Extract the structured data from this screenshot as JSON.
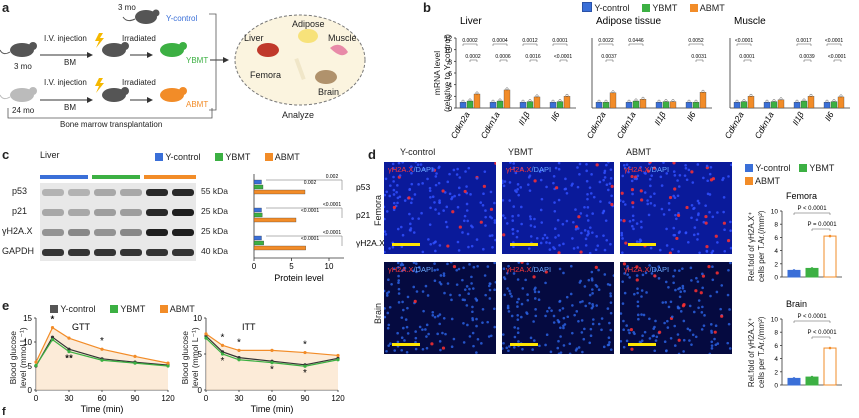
{
  "panel_labels": {
    "a": "a",
    "b": "b",
    "c": "c",
    "d": "d",
    "e": "e",
    "f": "f"
  },
  "colors": {
    "y_control": "#3a6fd8",
    "ybmt": "#3cb043",
    "abmt": "#f28c28",
    "black": "#333333"
  },
  "panel_a": {
    "age_young_top": "3 mo",
    "y_control": "Y-control",
    "iv_injection": "I.V. injection",
    "irradiated": "Irradiated",
    "age_young": "3 mo",
    "bm": "BM",
    "ybmt": "YBMT",
    "age_old": "24 mo",
    "abmt": "ABMT",
    "bracket_label": "Bone marrow transplantation",
    "organs": [
      "Liver",
      "Adipose",
      "Muscle",
      "Femora",
      "Brain"
    ],
    "analyze": "Analyze"
  },
  "legend": {
    "y_control": "Y-control",
    "ybmt": "YBMT",
    "abmt": "ABMT"
  },
  "panel_b": {
    "ylabel_1": "mRNA level",
    "ylabel_2": "(relative to Y-control)",
    "yticks": [
      "0",
      "2",
      "4",
      "6",
      "8",
      "10",
      "12"
    ],
    "genes": [
      "Cdkn2a",
      "Cdkn1a",
      "Il1β",
      "Il6"
    ],
    "chart_data": [
      {
        "type": "bar",
        "title": "Liver",
        "categories": [
          "Cdkn2a",
          "Cdkn1a",
          "Il1β",
          "Il6"
        ],
        "ylim": [
          0,
          12
        ],
        "series": [
          {
            "name": "Y-control",
            "values": [
              1,
              1,
              1,
              1
            ]
          },
          {
            "name": "YBMT",
            "values": [
              1.2,
              1.2,
              1.1,
              1.1
            ]
          },
          {
            "name": "ABMT",
            "values": [
              2.4,
              3.1,
              1.9,
              2.0
            ]
          }
        ],
        "pvalues": [
          [
            "0.0002",
            "0.0002"
          ],
          [
            "0.0004",
            "0.0006"
          ],
          [
            "0.0012",
            "0.0016"
          ],
          [
            "0.0001",
            "<0.0001"
          ]
        ]
      },
      {
        "type": "bar",
        "title": "Adipose tissue",
        "categories": [
          "Cdkn2a",
          "Cdkn1a",
          "Il1β",
          "Il6"
        ],
        "ylim": [
          0,
          12
        ],
        "series": [
          {
            "name": "Y-control",
            "values": [
              1,
              1,
              1,
              1
            ]
          },
          {
            "name": "YBMT",
            "values": [
              1.0,
              1.2,
              1.1,
              1.0
            ]
          },
          {
            "name": "ABMT",
            "values": [
              2.6,
              1.5,
              1.1,
              2.7
            ]
          }
        ],
        "pvalues": [
          [
            "0.0022",
            "0.0037"
          ],
          [
            "0.0446",
            ""
          ],
          [
            "",
            ""
          ],
          [
            "0.0052",
            "0.0031"
          ]
        ]
      },
      {
        "type": "bar",
        "title": "Muscle",
        "categories": [
          "Cdkn2a",
          "Cdkn1a",
          "Il1β",
          "Il6"
        ],
        "ylim": [
          0,
          12
        ],
        "series": [
          {
            "name": "Y-control",
            "values": [
              1,
              1,
              1,
              1
            ]
          },
          {
            "name": "YBMT",
            "values": [
              1.1,
              1.1,
              1.2,
              1.1
            ]
          },
          {
            "name": "ABMT",
            "values": [
              2.0,
              1.4,
              2.0,
              1.9
            ]
          }
        ],
        "pvalues": [
          [
            "<0.0001",
            "0.0001"
          ],
          [
            "",
            ""
          ],
          [
            "0.0017",
            "0.0039"
          ],
          [
            "<0.0001",
            "<0.0001"
          ]
        ]
      }
    ]
  },
  "panel_c": {
    "tissue": "Liver",
    "proteins": [
      "p53",
      "p21",
      "γH2A.X",
      "GAPDH"
    ],
    "kda": [
      "55 kDa",
      "25 kDa",
      "25 kDa",
      "40 kDa"
    ],
    "xlabel": "Protein level",
    "xticks": [
      "0",
      "5",
      "10"
    ],
    "chart_data": {
      "type": "bar",
      "orientation": "horizontal",
      "xlim": [
        0,
        12
      ],
      "categories": [
        "p53",
        "p21",
        "γH2A.X"
      ],
      "series": [
        {
          "name": "Y-control",
          "values": [
            1,
            1,
            1
          ]
        },
        {
          "name": "YBMT",
          "values": [
            1.2,
            1.1,
            1.3
          ]
        },
        {
          "name": "ABMT",
          "values": [
            6.8,
            5.6,
            6.9
          ]
        }
      ],
      "pvalues": [
        [
          "0.002",
          "0.002"
        ],
        [
          "<0.0001",
          "<0.0001"
        ],
        [
          "<0.0001",
          "<0.0001"
        ]
      ]
    }
  },
  "panel_d": {
    "col_titles": [
      "Y-control",
      "YBMT",
      "ABMT"
    ],
    "row_titles": [
      "Femora",
      "Brain"
    ],
    "stain_red": "γH2A.X",
    "stain_blue": "/DAPI",
    "ylabel_1": "Rel.fold of γH2A.X⁺",
    "ylabel_2": "cells per T.Ar.(/mm²)",
    "yticks": [
      "0",
      "2",
      "4",
      "6",
      "8",
      "10"
    ],
    "chart_data": [
      {
        "type": "bar",
        "title": "Femora",
        "categories": [
          "Y-control",
          "YBMT",
          "ABMT"
        ],
        "values": [
          1.0,
          1.3,
          6.2
        ],
        "ylim": [
          0,
          10
        ],
        "pvalues": [
          "P < 0.0001",
          "P = 0.0001"
        ]
      },
      {
        "type": "bar",
        "title": "Brain",
        "categories": [
          "Y-control",
          "YBMT",
          "ABMT"
        ],
        "values": [
          1.0,
          1.2,
          5.6
        ],
        "ylim": [
          0,
          10
        ],
        "pvalues": [
          "P < 0.0001",
          "P < 0.0001"
        ]
      }
    ]
  },
  "panel_e": {
    "ylabel_1": "Blood glucose",
    "ylabel_2": "level (mmol L⁻¹)",
    "xlabel": "Time (min)",
    "yticks": [
      "0",
      "5",
      "10",
      "15"
    ],
    "chart_data": [
      {
        "type": "line",
        "title": "GTT",
        "x": [
          0,
          15,
          30,
          60,
          90,
          120
        ],
        "ylim": [
          0,
          15
        ],
        "xlim": [
          0,
          120
        ],
        "series": [
          {
            "name": "Y-control",
            "values": [
              5.0,
              11.0,
              8.5,
              6.5,
              5.8,
              5.2
            ]
          },
          {
            "name": "YBMT",
            "values": [
              5.1,
              10.5,
              8.0,
              6.2,
              5.6,
              5.0
            ]
          },
          {
            "name": "ABMT",
            "values": [
              5.8,
              13.0,
              10.8,
              8.5,
              7.0,
              5.6
            ]
          }
        ],
        "asterisks": [
          "*",
          "**",
          "*",
          "**",
          "*"
        ]
      },
      {
        "type": "line",
        "title": "ITT",
        "x": [
          0,
          15,
          30,
          60,
          90,
          120
        ],
        "ylim": [
          0,
          10
        ],
        "xlim": [
          0,
          120
        ],
        "series": [
          {
            "name": "Y-control",
            "values": [
              7.5,
              5.3,
              4.5,
              4.0,
              3.5,
              4.4
            ]
          },
          {
            "name": "YBMT",
            "values": [
              7.2,
              5.0,
              4.2,
              3.8,
              3.3,
              4.2
            ]
          },
          {
            "name": "ABMT",
            "values": [
              7.8,
              6.2,
              5.5,
              5.5,
              5.2,
              4.8
            ]
          }
        ],
        "asterisks": [
          "*",
          "*",
          "*",
          "*",
          "*",
          "*"
        ]
      }
    ]
  }
}
